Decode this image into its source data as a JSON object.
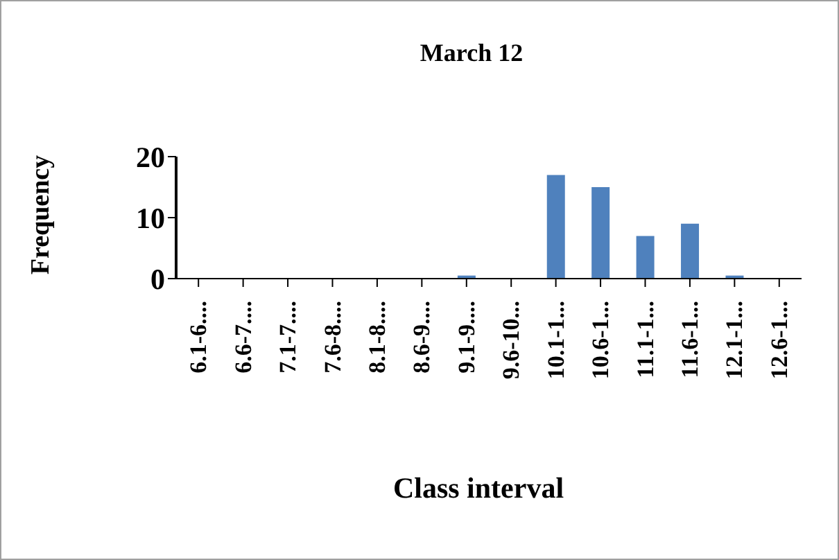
{
  "chart_data": {
    "type": "bar",
    "title": "March 12",
    "xlabel": "Class interval",
    "ylabel": "Frequency",
    "categories": [
      "6.1-6....",
      "6.6-7....",
      "7.1-7....",
      "7.6-8....",
      "8.1-8....",
      "8.6-9....",
      "9.1-9....",
      "9.6-10...",
      "10.1-1...",
      "10.6-1...",
      "11.1-1...",
      "11.6-1...",
      "12.1-1...",
      "12.6-1..."
    ],
    "values": [
      0,
      0,
      0,
      0,
      0,
      0,
      0.5,
      0,
      17,
      15,
      7,
      9,
      0.5,
      0
    ],
    "color": "#4f81bd",
    "ylim": [
      0,
      20
    ],
    "yticks": [
      0,
      10,
      20
    ],
    "grid": false,
    "legend": false
  }
}
